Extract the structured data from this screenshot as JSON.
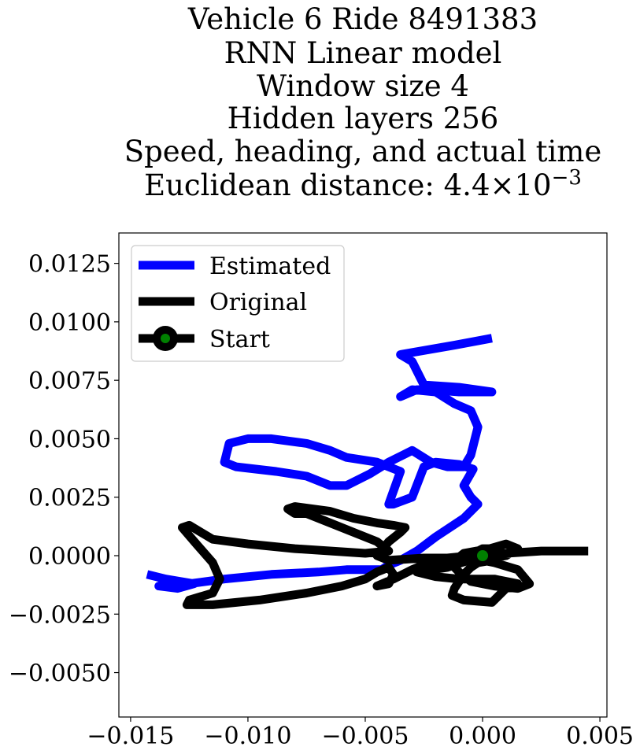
{
  "chart_data": {
    "type": "line",
    "title_lines": [
      "Vehicle 6 Ride 8491383",
      "RNN Linear model",
      "Window size 4",
      "Hidden layers 256",
      "Speed, heading, and actual time"
    ],
    "title_metric": {
      "prefix": "Euclidean distance: ",
      "mantissa": "4.4",
      "times": "×",
      "base": "10",
      "exponent": "−3"
    },
    "xlabel": "",
    "ylabel": "",
    "xlim": [
      -0.0155,
      0.0053
    ],
    "ylim": [
      -0.0069,
      0.0138
    ],
    "x_ticks": [
      {
        "value": -0.015,
        "label": "−0.015"
      },
      {
        "value": -0.01,
        "label": "−0.010"
      },
      {
        "value": -0.005,
        "label": "−0.005"
      },
      {
        "value": 0.0,
        "label": "0.000"
      },
      {
        "value": 0.005,
        "label": "0.005"
      }
    ],
    "y_ticks": [
      {
        "value": -0.005,
        "label": "−0.0050"
      },
      {
        "value": -0.0025,
        "label": "−0.0025"
      },
      {
        "value": 0.0,
        "label": "0.0000"
      },
      {
        "value": 0.0025,
        "label": "0.0025"
      },
      {
        "value": 0.005,
        "label": "0.0050"
      },
      {
        "value": 0.0075,
        "label": "0.0075"
      },
      {
        "value": 0.01,
        "label": "0.0100"
      },
      {
        "value": 0.0125,
        "label": "0.0125"
      }
    ],
    "grid": false,
    "legend_position": "upper-left",
    "series": [
      {
        "name": "Estimated",
        "color": "#0000ff",
        "x": [
          -0.0143,
          -0.0135,
          -0.0123,
          -0.013,
          -0.0138,
          -0.0125,
          -0.011,
          -0.009,
          -0.007,
          -0.0058,
          -0.005,
          -0.0043,
          -0.004,
          -0.0035,
          -0.0028,
          -0.002,
          -0.0008,
          -0.0002,
          -0.0005,
          -0.0008,
          -0.0004,
          -0.001,
          -0.002,
          -0.0025,
          -0.003,
          -0.0038,
          -0.004,
          -0.0035,
          -0.0045,
          -0.0058,
          -0.0065,
          -0.0075,
          -0.009,
          -0.01,
          -0.0108,
          -0.011,
          -0.0105,
          -0.0088,
          -0.0075,
          -0.0065,
          -0.0058,
          -0.0048,
          -0.004,
          -0.003,
          -0.0022,
          -0.0015,
          -0.0008,
          -0.0005,
          -0.0002,
          -0.0005,
          -0.0012,
          -0.002,
          -0.003,
          -0.0035,
          -0.0028,
          -0.0022,
          -0.001,
          0.0,
          0.0004,
          -0.001,
          -0.0025,
          -0.003,
          -0.0035,
          -0.0012,
          0.0004
        ],
        "y": [
          -0.0008,
          -0.001,
          -0.0012,
          -0.0014,
          -0.0013,
          -0.0012,
          -0.001,
          -0.0008,
          -0.0007,
          -0.0006,
          -0.0006,
          -0.0006,
          -0.0004,
          -0.0002,
          0.0002,
          0.0008,
          0.0016,
          0.0022,
          0.0025,
          0.003,
          0.0037,
          0.0039,
          0.004,
          0.0038,
          0.0025,
          0.0022,
          0.0022,
          0.0036,
          0.004,
          0.0042,
          0.0045,
          0.0048,
          0.005,
          0.005,
          0.0048,
          0.004,
          0.0038,
          0.0036,
          0.0034,
          0.003,
          0.003,
          0.0035,
          0.004,
          0.0045,
          0.004,
          0.0038,
          0.0038,
          0.0043,
          0.0055,
          0.0062,
          0.0065,
          0.007,
          0.0071,
          0.0068,
          0.0071,
          0.0071,
          0.007,
          0.007,
          0.007,
          0.0072,
          0.0073,
          0.0083,
          0.0086,
          0.009,
          0.0093
        ]
      },
      {
        "name": "Original",
        "color": "#000000",
        "x": [
          0.0045,
          0.0025,
          0.001,
          -0.0005,
          -0.0015,
          -0.0025,
          -0.004,
          -0.0045,
          -0.004,
          -0.0035,
          -0.0033,
          -0.0038,
          -0.0045,
          -0.0055,
          -0.0065,
          -0.008,
          -0.0083,
          -0.008,
          -0.0075,
          -0.0065,
          -0.0055,
          -0.0045,
          -0.004,
          -0.005,
          -0.008,
          -0.01,
          -0.0115,
          -0.012,
          -0.0125,
          -0.0128,
          -0.0122,
          -0.0115,
          -0.0112,
          -0.0115,
          -0.0125,
          -0.0126,
          -0.0115,
          -0.0095,
          -0.0075,
          -0.006,
          -0.005,
          -0.0045,
          -0.004,
          -0.0038,
          -0.004,
          -0.0045,
          -0.0038,
          -0.003,
          -0.0025,
          -0.0015,
          -0.0005,
          0.0005,
          0.0015,
          0.002,
          0.0015,
          0.0005,
          -0.0005,
          -0.001,
          -0.0012,
          -0.0013,
          -0.0008,
          0.0003,
          0.001,
          0.0015,
          0.001,
          0.0004,
          -0.0002,
          0.0,
          0.0005,
          0.0008,
          0.0004,
          -0.0002,
          -0.0005,
          -0.0008,
          -0.001,
          -0.0012,
          -0.0013,
          -0.0008,
          0.0004,
          0.001,
          0.0015,
          0.0005,
          -0.001,
          -0.002,
          -0.0028,
          -0.0015,
          0.0
        ],
        "y": [
          0.0002,
          0.0002,
          0.0001,
          0.0,
          -0.0001,
          -0.0001,
          -0.0002,
          0.0,
          0.0006,
          0.001,
          0.0012,
          0.0013,
          0.0014,
          0.0016,
          0.0019,
          0.0021,
          0.002,
          0.0018,
          0.0018,
          0.0014,
          0.001,
          0.0006,
          0.0002,
          0.0001,
          0.0003,
          0.0005,
          0.0007,
          0.001,
          0.0013,
          0.0012,
          0.0005,
          -0.0003,
          -0.001,
          -0.0016,
          -0.0019,
          -0.0021,
          -0.0021,
          -0.0019,
          -0.0016,
          -0.0013,
          -0.001,
          -0.0007,
          -0.0005,
          -0.0008,
          -0.0012,
          -0.0013,
          -0.001,
          -0.0006,
          -0.0004,
          -0.0002,
          -0.0001,
          -0.0003,
          -0.0006,
          -0.0012,
          -0.0014,
          -0.0013,
          -0.0011,
          -0.0007,
          -0.0005,
          -0.0003,
          0.0001,
          0.0003,
          0.0005,
          0.0003,
          0.0,
          -0.0001,
          0.0002,
          0.0003,
          0.0003,
          0.0001,
          -0.0002,
          -0.0003,
          -0.0005,
          -0.0008,
          -0.0011,
          -0.0014,
          -0.0017,
          -0.0019,
          -0.002,
          -0.0014,
          -0.0012,
          -0.001,
          -0.001,
          -0.0009,
          -0.0007,
          -0.0005,
          0.0
        ]
      }
    ],
    "start_point": {
      "name": "Start",
      "x": 0.0,
      "y": 0.0,
      "outer_color": "#000000",
      "inner_color": "#008000"
    }
  }
}
